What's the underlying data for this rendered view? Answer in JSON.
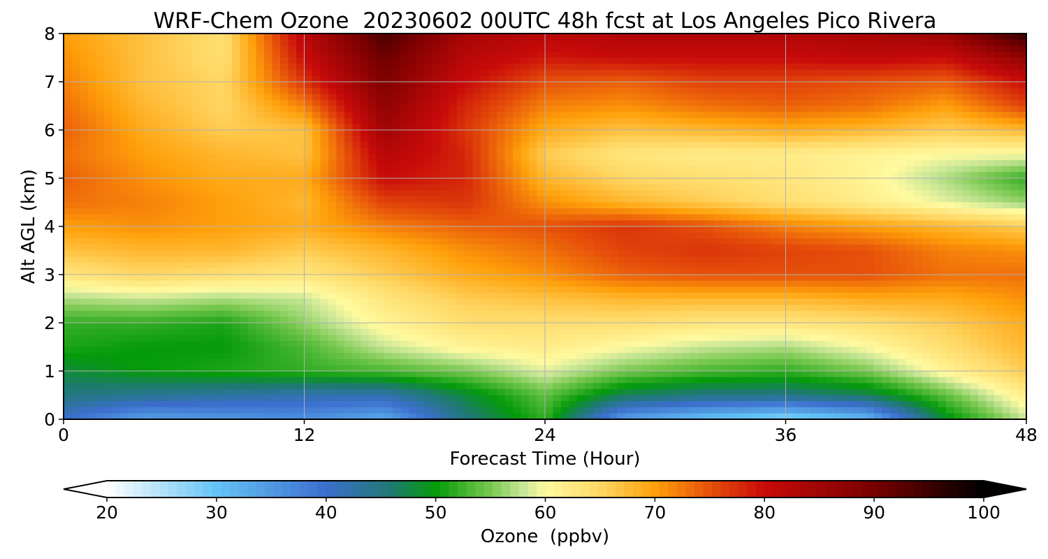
{
  "chart_data": {
    "type": "heatmap",
    "title": "WRF-Chem Ozone  20230602 00UTC 48h fcst at Los Angeles Pico Rivera",
    "xlabel": "Forecast Time (Hour)",
    "ylabel": "Alt AGL (km)",
    "xlim": [
      0,
      48
    ],
    "ylim": [
      0,
      8
    ],
    "x_ticks": [
      0,
      12,
      24,
      36,
      48
    ],
    "y_ticks": [
      0,
      1,
      2,
      3,
      4,
      5,
      6,
      7,
      8
    ],
    "grid": true,
    "colorbar": {
      "label": "Ozone  (ppbv)",
      "min": 20,
      "max": 100,
      "ticks": [
        20,
        30,
        40,
        50,
        60,
        70,
        80,
        90,
        100
      ],
      "extend": "both",
      "orientation": "horizontal",
      "colors": [
        {
          "v": 20,
          "c": "#ffffff"
        },
        {
          "v": 30,
          "c": "#64c3f5"
        },
        {
          "v": 40,
          "c": "#3c6ecd"
        },
        {
          "v": 46,
          "c": "#1e7a70"
        },
        {
          "v": 50,
          "c": "#059b0a"
        },
        {
          "v": 55,
          "c": "#78c850"
        },
        {
          "v": 58,
          "c": "#c8e696"
        },
        {
          "v": 60,
          "c": "#fffaa0"
        },
        {
          "v": 65,
          "c": "#ffd764"
        },
        {
          "v": 70,
          "c": "#ffa00a"
        },
        {
          "v": 75,
          "c": "#e6500a"
        },
        {
          "v": 80,
          "c": "#c80a0a"
        },
        {
          "v": 90,
          "c": "#780000"
        },
        {
          "v": 100,
          "c": "#000000"
        }
      ]
    },
    "x": [
      0,
      4,
      8,
      12,
      16,
      20,
      24,
      28,
      32,
      36,
      40,
      44,
      48
    ],
    "y": [
      0,
      0.5,
      1,
      1.5,
      2,
      2.5,
      3,
      3.5,
      4,
      4.5,
      5,
      5.5,
      6,
      6.5,
      7,
      7.5,
      8
    ],
    "z": [
      [
        40,
        34,
        35,
        36,
        33,
        45,
        52,
        34,
        30,
        27,
        31,
        49,
        58
      ],
      [
        45,
        44,
        43,
        42,
        42,
        48,
        54,
        47,
        45,
        45,
        47,
        54,
        62
      ],
      [
        48,
        50,
        51,
        52,
        53,
        55,
        59,
        55,
        53,
        52,
        55,
        61,
        66
      ],
      [
        51,
        50,
        50,
        53,
        58,
        61,
        62,
        60,
        58,
        57,
        60,
        64,
        68
      ],
      [
        52,
        52,
        51,
        56,
        61,
        64,
        64,
        64,
        63,
        63,
        64,
        66,
        69
      ],
      [
        57,
        58,
        57,
        58,
        63,
        66,
        67,
        68,
        68,
        68,
        69,
        69,
        71
      ],
      [
        63,
        65,
        64,
        63,
        66,
        69,
        71,
        74,
        75,
        75,
        75,
        73,
        73
      ],
      [
        67,
        68,
        68,
        66,
        68,
        71,
        73,
        76,
        77,
        76,
        75,
        72,
        71
      ],
      [
        70,
        71,
        70,
        69,
        72,
        74,
        75,
        77,
        75,
        72,
        70,
        68,
        66
      ],
      [
        73,
        72,
        70,
        68,
        76,
        77,
        71,
        68,
        66,
        64,
        62,
        59,
        56
      ],
      [
        74,
        71,
        69,
        69,
        80,
        78,
        68,
        65,
        64,
        63,
        61,
        57,
        52
      ],
      [
        73,
        70,
        68,
        67,
        82,
        78,
        66,
        63,
        62,
        62,
        61,
        60,
        60
      ],
      [
        74,
        69,
        66,
        67,
        85,
        77,
        69,
        67,
        68,
        69,
        68,
        66,
        68
      ],
      [
        73,
        68,
        65,
        72,
        87,
        78,
        72,
        71,
        73,
        74,
        73,
        70,
        76
      ],
      [
        72,
        67,
        65,
        77,
        89,
        80,
        75,
        74,
        76,
        76,
        75,
        74,
        80
      ],
      [
        71,
        67,
        64,
        80,
        91,
        82,
        79,
        80,
        80,
        80,
        81,
        80,
        87
      ],
      [
        70,
        67,
        64,
        82,
        94,
        84,
        82,
        83,
        83,
        83,
        84,
        86,
        96
      ]
    ]
  }
}
